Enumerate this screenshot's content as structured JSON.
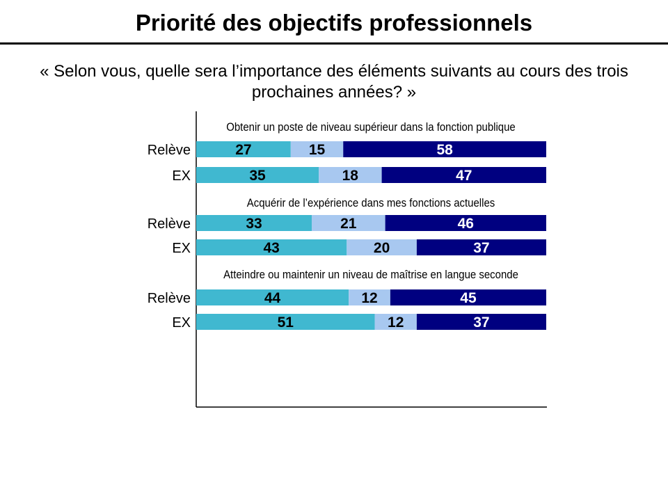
{
  "title": "Priorité des objectifs professionnels",
  "subtitle": "« Selon vous, quelle sera l’importance des éléments suivants au cours des trois prochaines années? »",
  "chart_data": {
    "type": "bar",
    "orientation": "horizontal",
    "stacked": true,
    "colors": [
      "#40B8D0",
      "#A8C8F0",
      "#000080"
    ],
    "label_colors": [
      "#000000",
      "#000000",
      "#FFFFFF"
    ],
    "xlim": [
      0,
      100
    ],
    "grid": false,
    "legend": "none",
    "groups": [
      {
        "title": "Obtenir un poste de niveau supérieur dans la fonction publique",
        "rows": [
          {
            "label": "Relève",
            "values": [
              27,
              15,
              58
            ]
          },
          {
            "label": "EX",
            "values": [
              35,
              18,
              47
            ]
          }
        ]
      },
      {
        "title": "Acquérir de l’expérience dans mes fonctions actuelles",
        "rows": [
          {
            "label": "Relève",
            "values": [
              33,
              21,
              46
            ]
          },
          {
            "label": "EX",
            "values": [
              43,
              20,
              37
            ]
          }
        ]
      },
      {
        "title": "Atteindre ou maintenir un niveau de maîtrise en langue seconde",
        "rows": [
          {
            "label": "Relève",
            "values": [
              44,
              12,
              45
            ]
          },
          {
            "label": "EX",
            "values": [
              51,
              12,
              37
            ]
          }
        ]
      }
    ]
  }
}
